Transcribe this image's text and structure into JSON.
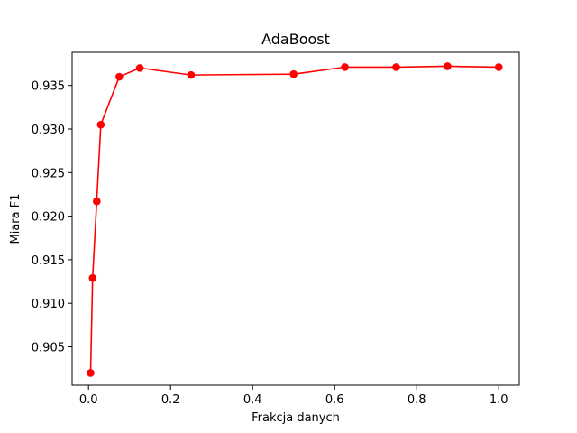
{
  "chart_data": {
    "type": "line",
    "title": "AdaBoost",
    "xlabel": "Frakcja danych",
    "ylabel": "Miara F1",
    "xlim": [
      -0.04,
      1.05
    ],
    "ylim": [
      0.9006,
      0.9388
    ],
    "xticks": [
      0.0,
      0.2,
      0.4,
      0.6,
      0.8,
      1.0
    ],
    "xtick_labels": [
      "0.0",
      "0.2",
      "0.4",
      "0.6",
      "0.8",
      "1.0"
    ],
    "yticks": [
      0.905,
      0.91,
      0.915,
      0.92,
      0.925,
      0.93,
      0.935
    ],
    "ytick_labels": [
      "0.905",
      "0.910",
      "0.915",
      "0.920",
      "0.925",
      "0.930",
      "0.935"
    ],
    "grid": false,
    "series": [
      {
        "color": "#ff0000",
        "marker": "circle",
        "x": [
          0.005,
          0.01,
          0.02,
          0.03,
          0.075,
          0.125,
          0.25,
          0.5,
          0.625,
          0.75,
          0.875,
          1.0
        ],
        "y": [
          0.902,
          0.9129,
          0.9217,
          0.9305,
          0.936,
          0.937,
          0.9362,
          0.9363,
          0.9371,
          0.9371,
          0.9372,
          0.9371
        ]
      }
    ]
  }
}
